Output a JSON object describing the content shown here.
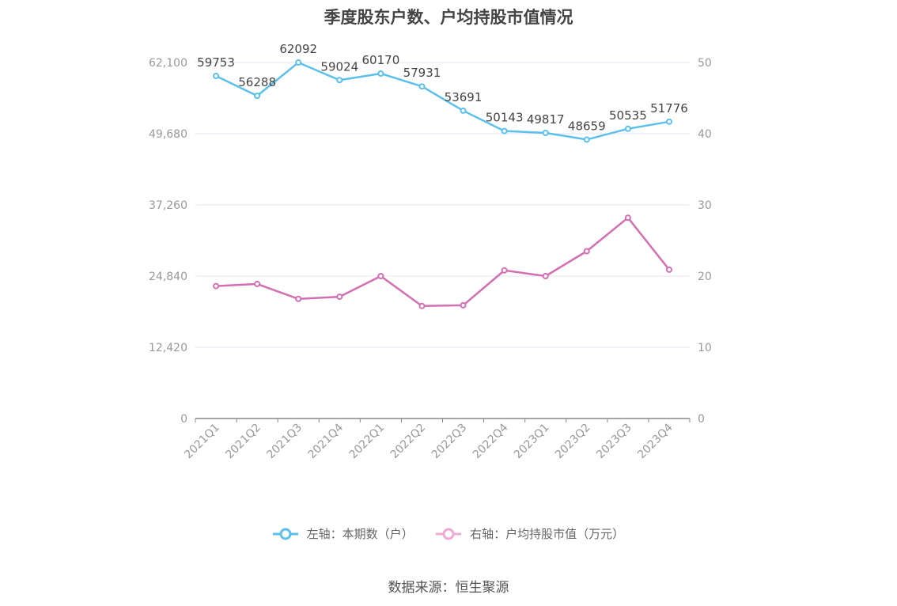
{
  "title": "季度股东户数、户均持股市值情况",
  "source": "数据来源：恒生聚源",
  "chart_data": {
    "type": "line",
    "categories": [
      "2021Q1",
      "2021Q2",
      "2021Q3",
      "2021Q4",
      "2022Q1",
      "2022Q2",
      "2022Q3",
      "2022Q4",
      "2023Q1",
      "2023Q2",
      "2023Q3",
      "2023Q4"
    ],
    "left_axis": {
      "min": 0,
      "max": 62100,
      "ticks": [
        "0",
        "12,420",
        "24,840",
        "37,260",
        "49,680",
        "62,100"
      ]
    },
    "right_axis": {
      "min": 0,
      "max": 50,
      "ticks": [
        "0",
        "10",
        "20",
        "30",
        "40",
        "50"
      ]
    },
    "grid": true,
    "legend_position": "bottom",
    "series": [
      {
        "name": "左轴：本期数（户）",
        "axis": "left",
        "color": "#5bc0eb",
        "show_labels": true,
        "values": [
          59753,
          56288,
          62092,
          59024,
          60170,
          57931,
          53691,
          50143,
          49817,
          48659,
          50535,
          51776
        ]
      },
      {
        "name": "右轴：户均持股市值（万元）",
        "axis": "right",
        "color": "#d36fb3",
        "legend_color": "#f0a8d4",
        "show_labels": false,
        "values": [
          18.6,
          18.9,
          16.8,
          17.1,
          20.0,
          15.8,
          15.9,
          20.8,
          20.0,
          23.5,
          28.2,
          20.9
        ]
      }
    ]
  }
}
